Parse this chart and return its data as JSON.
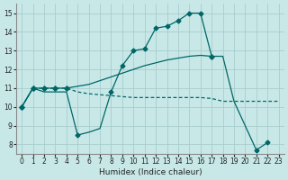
{
  "xlabel": "Humidex (Indice chaleur)",
  "bg_color": "#c8e8e8",
  "grid_color": "#a8cccc",
  "line_color": "#006666",
  "xlim": [
    -0.5,
    23.5
  ],
  "ylim": [
    7.5,
    15.5
  ],
  "xticks": [
    0,
    1,
    2,
    3,
    4,
    5,
    6,
    7,
    8,
    9,
    10,
    11,
    12,
    13,
    14,
    15,
    16,
    17,
    18,
    19,
    20,
    21,
    22,
    23
  ],
  "yticks": [
    8,
    9,
    10,
    11,
    12,
    13,
    14,
    15
  ],
  "line1_x": [
    0,
    1,
    2,
    3,
    4,
    5,
    6,
    7,
    8,
    9,
    10,
    11,
    12,
    13,
    14,
    15,
    16,
    17,
    18,
    19,
    20,
    21,
    22
  ],
  "line1_y": [
    10,
    11,
    10.8,
    10.8,
    10.8,
    8.5,
    8.65,
    8.85,
    10.8,
    12.2,
    13.0,
    13.1,
    14.2,
    14.3,
    14.6,
    15.0,
    15.0,
    12.7,
    12.7,
    10.3,
    9.0,
    7.7,
    8.1
  ],
  "line2_x": [
    0,
    1,
    2,
    3,
    4,
    5,
    6,
    7,
    8,
    9,
    10,
    11,
    12,
    13,
    14,
    15,
    16,
    17
  ],
  "line2_y": [
    10,
    11,
    11,
    11,
    11,
    11.1,
    11.2,
    11.4,
    11.6,
    11.8,
    12.0,
    12.2,
    12.35,
    12.5,
    12.6,
    12.7,
    12.75,
    12.7
  ],
  "line3_x": [
    0,
    1,
    2,
    3,
    4,
    5,
    6,
    7,
    8,
    9,
    10,
    11,
    12,
    13,
    14,
    15,
    16,
    17,
    18,
    19,
    20,
    21,
    22,
    23
  ],
  "line3_y": [
    10,
    11,
    11,
    11,
    11,
    10.8,
    10.7,
    10.65,
    10.6,
    10.55,
    10.5,
    10.5,
    10.5,
    10.5,
    10.5,
    10.5,
    10.5,
    10.45,
    10.3,
    10.3,
    10.3,
    10.3,
    10.3,
    10.3
  ],
  "markers1_x": [
    0,
    1,
    5,
    8,
    9,
    10,
    11,
    12,
    13,
    14,
    15,
    16,
    17,
    21,
    22
  ],
  "markers1_y": [
    10,
    11,
    8.5,
    10.8,
    12.2,
    13.0,
    13.1,
    14.2,
    14.3,
    14.6,
    15.0,
    15.0,
    12.7,
    7.7,
    8.1
  ],
  "markers2_x": [
    0,
    1,
    2,
    3,
    4,
    17
  ],
  "markers2_y": [
    10,
    11,
    11,
    11,
    11,
    12.7
  ],
  "markers3_x": [
    0,
    1,
    2,
    3,
    4
  ],
  "markers3_y": [
    10,
    11,
    11,
    11,
    11
  ]
}
